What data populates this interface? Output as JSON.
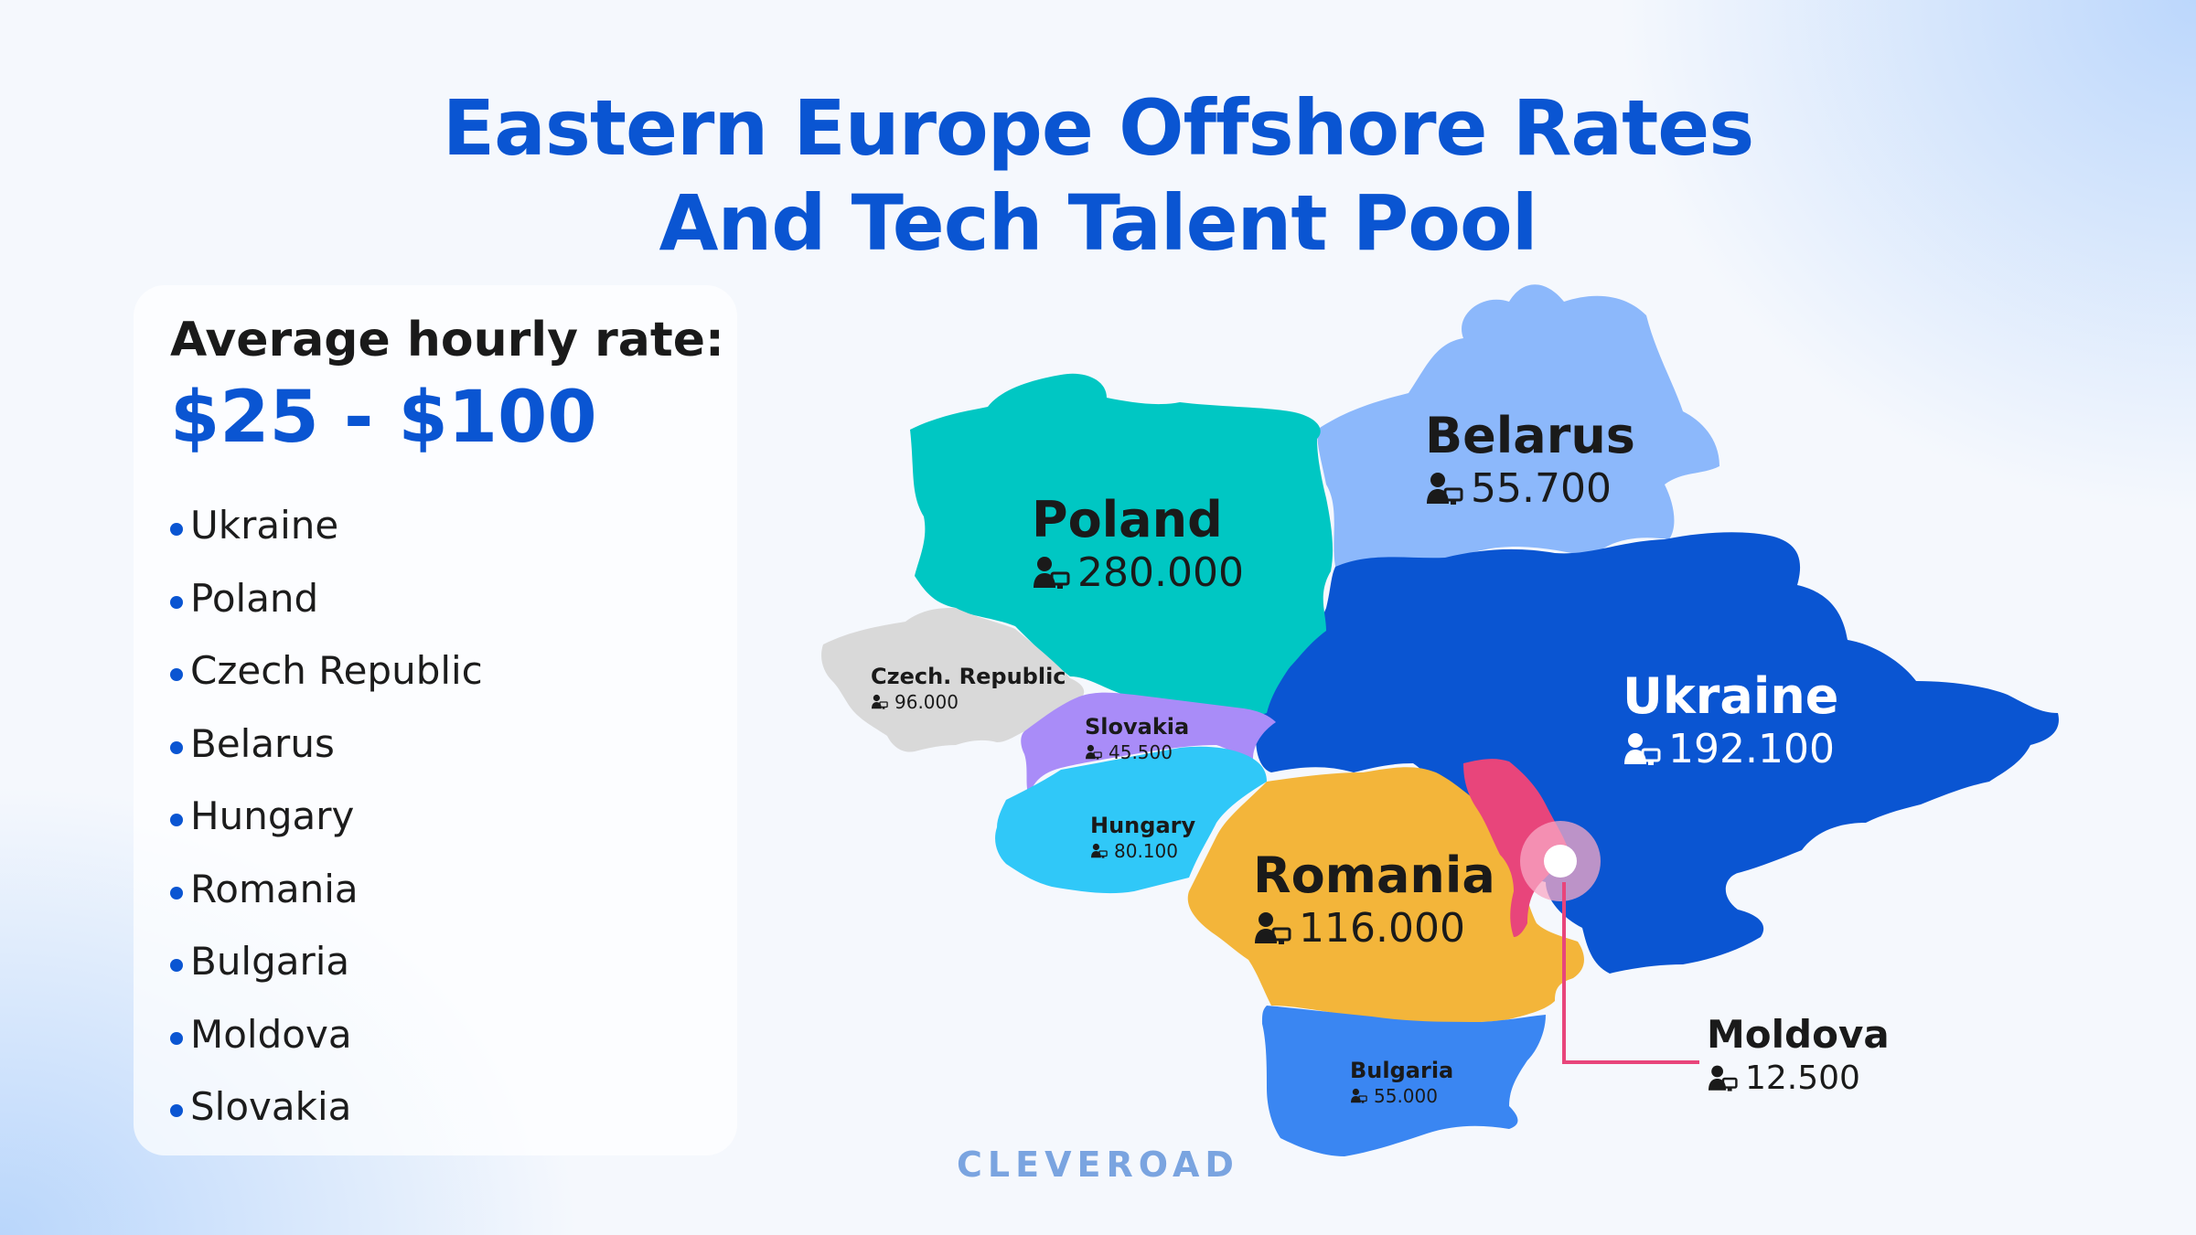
{
  "title": {
    "line1": "Eastern Europe Offshore Rates",
    "line2": "And Tech Talent Pool"
  },
  "panel": {
    "rate_label": "Average hourly rate:",
    "rate_value": "$25 - $100",
    "countries": [
      "Ukraine",
      "Poland",
      "Czech Republic",
      "Belarus",
      "Hungary",
      "Romania",
      "Bulgaria",
      "Moldova",
      "Slovakia"
    ]
  },
  "map": {
    "regions": {
      "poland": {
        "name": "Poland",
        "count": "280.000",
        "color": "#00c7c3"
      },
      "belarus": {
        "name": "Belarus",
        "count": "55.700",
        "color": "#8cb8fb"
      },
      "ukraine": {
        "name": "Ukraine",
        "count": "192.100",
        "color": "#0a55d2"
      },
      "czech": {
        "name": "Czech. Republic",
        "count": "96.000",
        "color": "#d9d9d9"
      },
      "slovakia": {
        "name": "Slovakia",
        "count": "45.500",
        "color": "#a98cf8"
      },
      "hungary": {
        "name": "Hungary",
        "count": "80.100",
        "color": "#30c8f8"
      },
      "romania": {
        "name": "Romania",
        "count": "116.000",
        "color": "#f3b53a"
      },
      "bulgaria": {
        "name": "Bulgaria",
        "count": "55.000",
        "color": "#3a86f2"
      },
      "moldova": {
        "name": "Moldova",
        "count": "12.500",
        "color": "#e8457b"
      }
    },
    "icon": "developer-icon"
  },
  "brand": "CLEVEROAD"
}
